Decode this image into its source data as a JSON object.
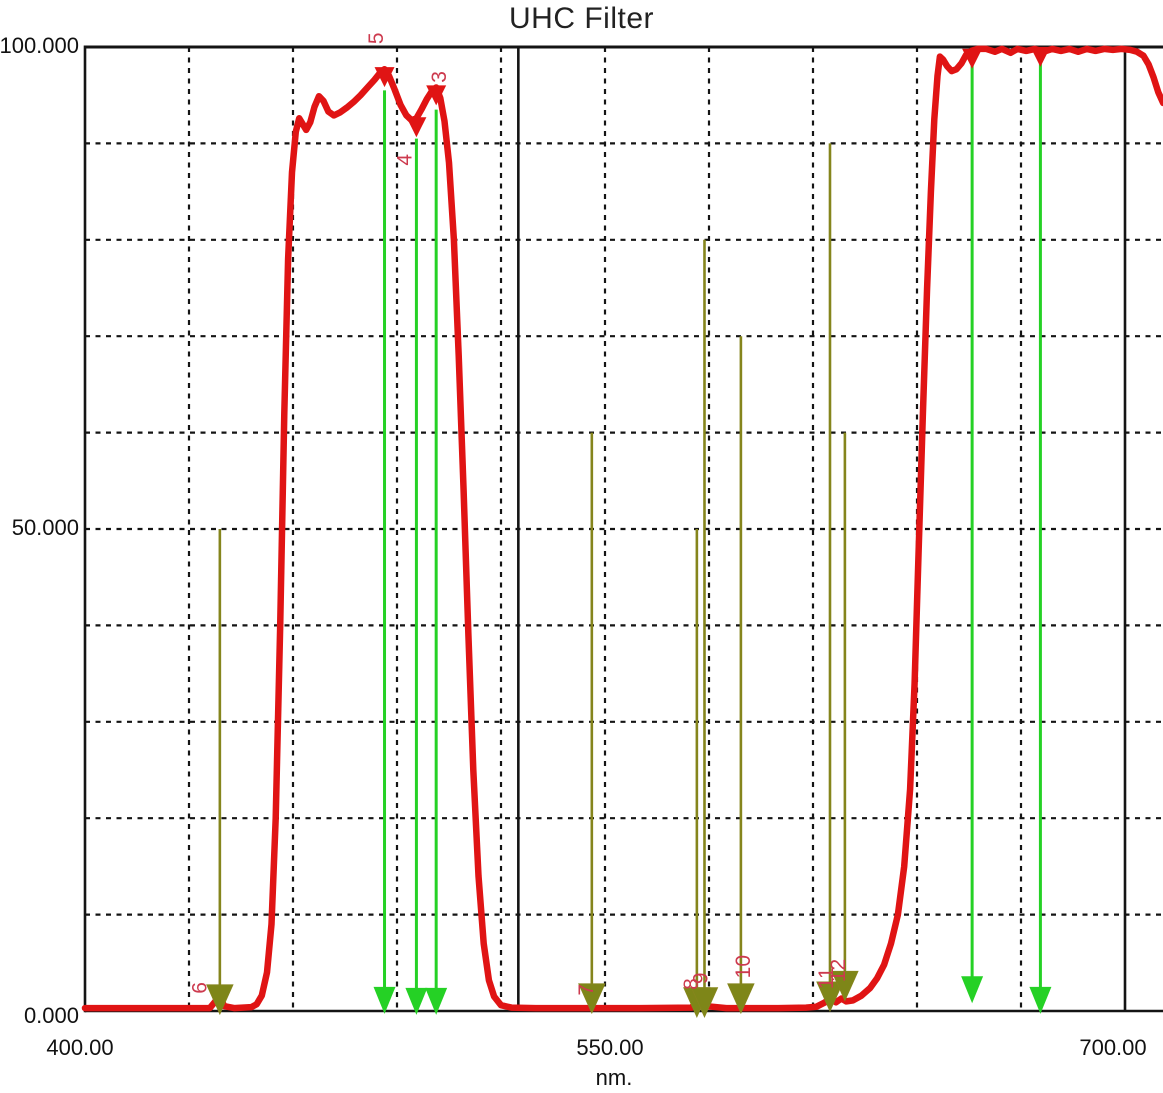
{
  "title": "UHC Filter",
  "x_axis": {
    "label": "nm.",
    "tick_labels": [
      "400.00",
      "550.00",
      "700.00"
    ]
  },
  "y_axis": {
    "tick_labels": [
      "100.000",
      "50.000",
      "0.000"
    ]
  },
  "chart_data": {
    "type": "line",
    "title": "UHC Filter",
    "xlabel": "nm.",
    "ylabel": "",
    "xlim": [
      400,
      711
    ],
    "ylim": [
      0,
      100
    ],
    "x_ticks": [
      400,
      550,
      700
    ],
    "x_tick_labels": [
      "400.00",
      "550.00",
      "700.00"
    ],
    "y_ticks": [
      100,
      50,
      0
    ],
    "y_tick_labels": [
      "100.000",
      "50.000",
      "0.000"
    ],
    "x_gridlines_nm": [
      430,
      460,
      490,
      520,
      550,
      580,
      610,
      640,
      670
    ],
    "y_gridlines_pct": [
      10,
      20,
      30,
      40,
      50,
      60,
      70,
      80,
      90
    ],
    "grid_style": "dashed",
    "vertical_marker_lines_nm": [
      525,
      700
    ],
    "series": [
      {
        "name": "uhc-filter-transmission",
        "color_key": "curve",
        "points": [
          [
            400,
            0.3
          ],
          [
            428,
            0.3
          ],
          [
            436,
            0.3
          ],
          [
            437.6,
            1.0
          ],
          [
            438.9,
            1.4
          ],
          [
            440.2,
            0.5
          ],
          [
            443,
            0.3
          ],
          [
            448,
            0.4
          ],
          [
            449.5,
            0.7
          ],
          [
            451,
            1.6
          ],
          [
            452.5,
            4
          ],
          [
            453.8,
            9
          ],
          [
            455,
            20
          ],
          [
            456.3,
            40
          ],
          [
            457.5,
            62
          ],
          [
            458.6,
            78
          ],
          [
            459.7,
            87
          ],
          [
            460.8,
            91.2
          ],
          [
            461.8,
            92.6
          ],
          [
            462.8,
            92.0
          ],
          [
            463.8,
            91.4
          ],
          [
            465,
            92.2
          ],
          [
            466.2,
            93.8
          ],
          [
            467.5,
            94.9
          ],
          [
            468.8,
            94.4
          ],
          [
            470.2,
            93.3
          ],
          [
            471.8,
            92.9
          ],
          [
            473.5,
            93.2
          ],
          [
            475.5,
            93.7
          ],
          [
            477.5,
            94.3
          ],
          [
            479.5,
            95.0
          ],
          [
            481.5,
            95.8
          ],
          [
            483.5,
            96.6
          ],
          [
            485.3,
            97.4
          ],
          [
            486.4,
            97.7
          ],
          [
            487.7,
            97.0
          ],
          [
            489.3,
            95.6
          ],
          [
            491,
            94.0
          ],
          [
            492.7,
            92.9
          ],
          [
            494.2,
            92.4
          ],
          [
            495.6,
            92.6
          ],
          [
            497,
            93.5
          ],
          [
            498.6,
            94.6
          ],
          [
            500.2,
            95.5
          ],
          [
            501.3,
            95.8
          ],
          [
            502.5,
            94.7
          ],
          [
            503.7,
            92.3
          ],
          [
            505,
            88
          ],
          [
            506.4,
            80
          ],
          [
            507.8,
            68
          ],
          [
            509.2,
            54
          ],
          [
            510.6,
            39
          ],
          [
            512,
            25
          ],
          [
            513.5,
            14
          ],
          [
            515,
            7
          ],
          [
            516.5,
            3.2
          ],
          [
            518,
            1.5
          ],
          [
            520,
            0.6
          ],
          [
            523,
            0.35
          ],
          [
            530,
            0.3
          ],
          [
            545,
            0.3
          ],
          [
            560,
            0.3
          ],
          [
            575,
            0.35
          ],
          [
            576.6,
            1.1
          ],
          [
            578,
            1.0
          ],
          [
            579.4,
            0.5
          ],
          [
            585,
            0.3
          ],
          [
            600,
            0.3
          ],
          [
            608,
            0.35
          ],
          [
            611,
            0.45
          ],
          [
            613.5,
            0.9
          ],
          [
            615,
            1.4
          ],
          [
            616.6,
            0.9
          ],
          [
            618.2,
            1.3
          ],
          [
            619.6,
            1.0
          ],
          [
            621.5,
            1.1
          ],
          [
            624,
            1.6
          ],
          [
            626.5,
            2.4
          ],
          [
            628.5,
            3.4
          ],
          [
            630.5,
            4.8
          ],
          [
            632.5,
            7
          ],
          [
            634.5,
            10
          ],
          [
            636.3,
            15
          ],
          [
            638,
            23
          ],
          [
            639.3,
            34
          ],
          [
            640.5,
            48
          ],
          [
            641.7,
            62
          ],
          [
            642.9,
            75
          ],
          [
            644,
            85
          ],
          [
            645,
            92.5
          ],
          [
            645.9,
            97
          ],
          [
            646.6,
            99.0
          ],
          [
            647.5,
            98.7
          ],
          [
            648.7,
            98.0
          ],
          [
            650,
            97.5
          ],
          [
            651.4,
            97.7
          ],
          [
            652.8,
            98.3
          ],
          [
            654.2,
            99.2
          ],
          [
            655.7,
            99.6
          ],
          [
            657.5,
            99.8
          ],
          [
            660,
            99.8
          ],
          [
            662.5,
            99.5
          ],
          [
            664.5,
            99.8
          ],
          [
            667,
            99.4
          ],
          [
            669,
            99.8
          ],
          [
            671.5,
            99.6
          ],
          [
            674,
            99.8
          ],
          [
            676.5,
            99.5
          ],
          [
            679,
            99.8
          ],
          [
            681.5,
            99.6
          ],
          [
            684,
            99.8
          ],
          [
            686.5,
            99.5
          ],
          [
            689,
            99.8
          ],
          [
            691.5,
            99.6
          ],
          [
            694,
            99.8
          ],
          [
            696.5,
            99.7
          ],
          [
            699,
            99.8
          ],
          [
            701.5,
            99.7
          ],
          [
            703.5,
            99.5
          ],
          [
            705.3,
            99.1
          ],
          [
            706.8,
            98.2
          ],
          [
            708.2,
            96.9
          ],
          [
            709.6,
            95.3
          ],
          [
            711,
            94.2
          ]
        ]
      }
    ],
    "passband_arrows_green": [
      {
        "nm": 486.4,
        "top_pct": 95.5,
        "tip_pct": -0.3
      },
      {
        "nm": 495.6,
        "top_pct": 90.5,
        "tip_pct": -0.4
      },
      {
        "nm": 501.3,
        "top_pct": 93.5,
        "tip_pct": -0.4
      },
      {
        "nm": 655.9,
        "top_pct": 98.8,
        "tip_pct": 0.8
      },
      {
        "nm": 675.6,
        "top_pct": 98.8,
        "tip_pct": -0.3
      }
    ],
    "blocked_line_arrows_olive": [
      {
        "nm": 438.9,
        "top_pct": 50,
        "tip_pct": -0.3
      },
      {
        "nm": 546.2,
        "top_pct": 60,
        "tip_pct": -0.2
      },
      {
        "nm": 576.5,
        "top_pct": 50,
        "tip_pct": -0.6
      },
      {
        "nm": 578.7,
        "top_pct": 80,
        "tip_pct": -0.6
      },
      {
        "nm": 589.2,
        "top_pct": 70,
        "tip_pct": -0.2
      },
      {
        "nm": 614.9,
        "top_pct": 90,
        "tip_pct": 0.0
      },
      {
        "nm": 619.2,
        "top_pct": 60,
        "tip_pct": 1.1
      }
    ],
    "curve_point_markers_red": [
      {
        "nm": 486.4,
        "pct": 97.4
      },
      {
        "nm": 495.6,
        "pct": 92.2
      },
      {
        "nm": 501.3,
        "pct": 95.5
      },
      {
        "nm": 655.9,
        "pct": 99.3
      },
      {
        "nm": 675.6,
        "pct": 99.5
      }
    ],
    "line_number_labels_red": [
      {
        "text": "5",
        "nm": 484.3,
        "pct": 100.9
      },
      {
        "text": "4",
        "nm": 492.6,
        "pct": 88.3
      },
      {
        "text": "3",
        "nm": 502.6,
        "pct": 96.9
      },
      {
        "text": "6",
        "nm": 433.4,
        "pct": 2.4
      },
      {
        "text": "7",
        "nm": 544.9,
        "pct": 2.2
      },
      {
        "text": "8",
        "nm": 575.2,
        "pct": 2.8
      },
      {
        "text": "9",
        "nm": 577.9,
        "pct": 3.4
      },
      {
        "text": "10",
        "nm": 590.2,
        "pct": 4.6
      },
      {
        "text": "11",
        "nm": 614.2,
        "pct": 3.4
      },
      {
        "text": "12",
        "nm": 617.6,
        "pct": 4.2
      }
    ]
  },
  "colors": {
    "background": "#ffffff",
    "curve": "#e01414",
    "green_arrow": "#25d125",
    "olive_arrow": "#85851c",
    "olive_head": "#7e8618",
    "label_red": "#cd3a4e",
    "grid": "#141414",
    "frame": "#141414",
    "marker_line": "#141414",
    "title_text": "#222222",
    "tick_text": "#111111"
  }
}
